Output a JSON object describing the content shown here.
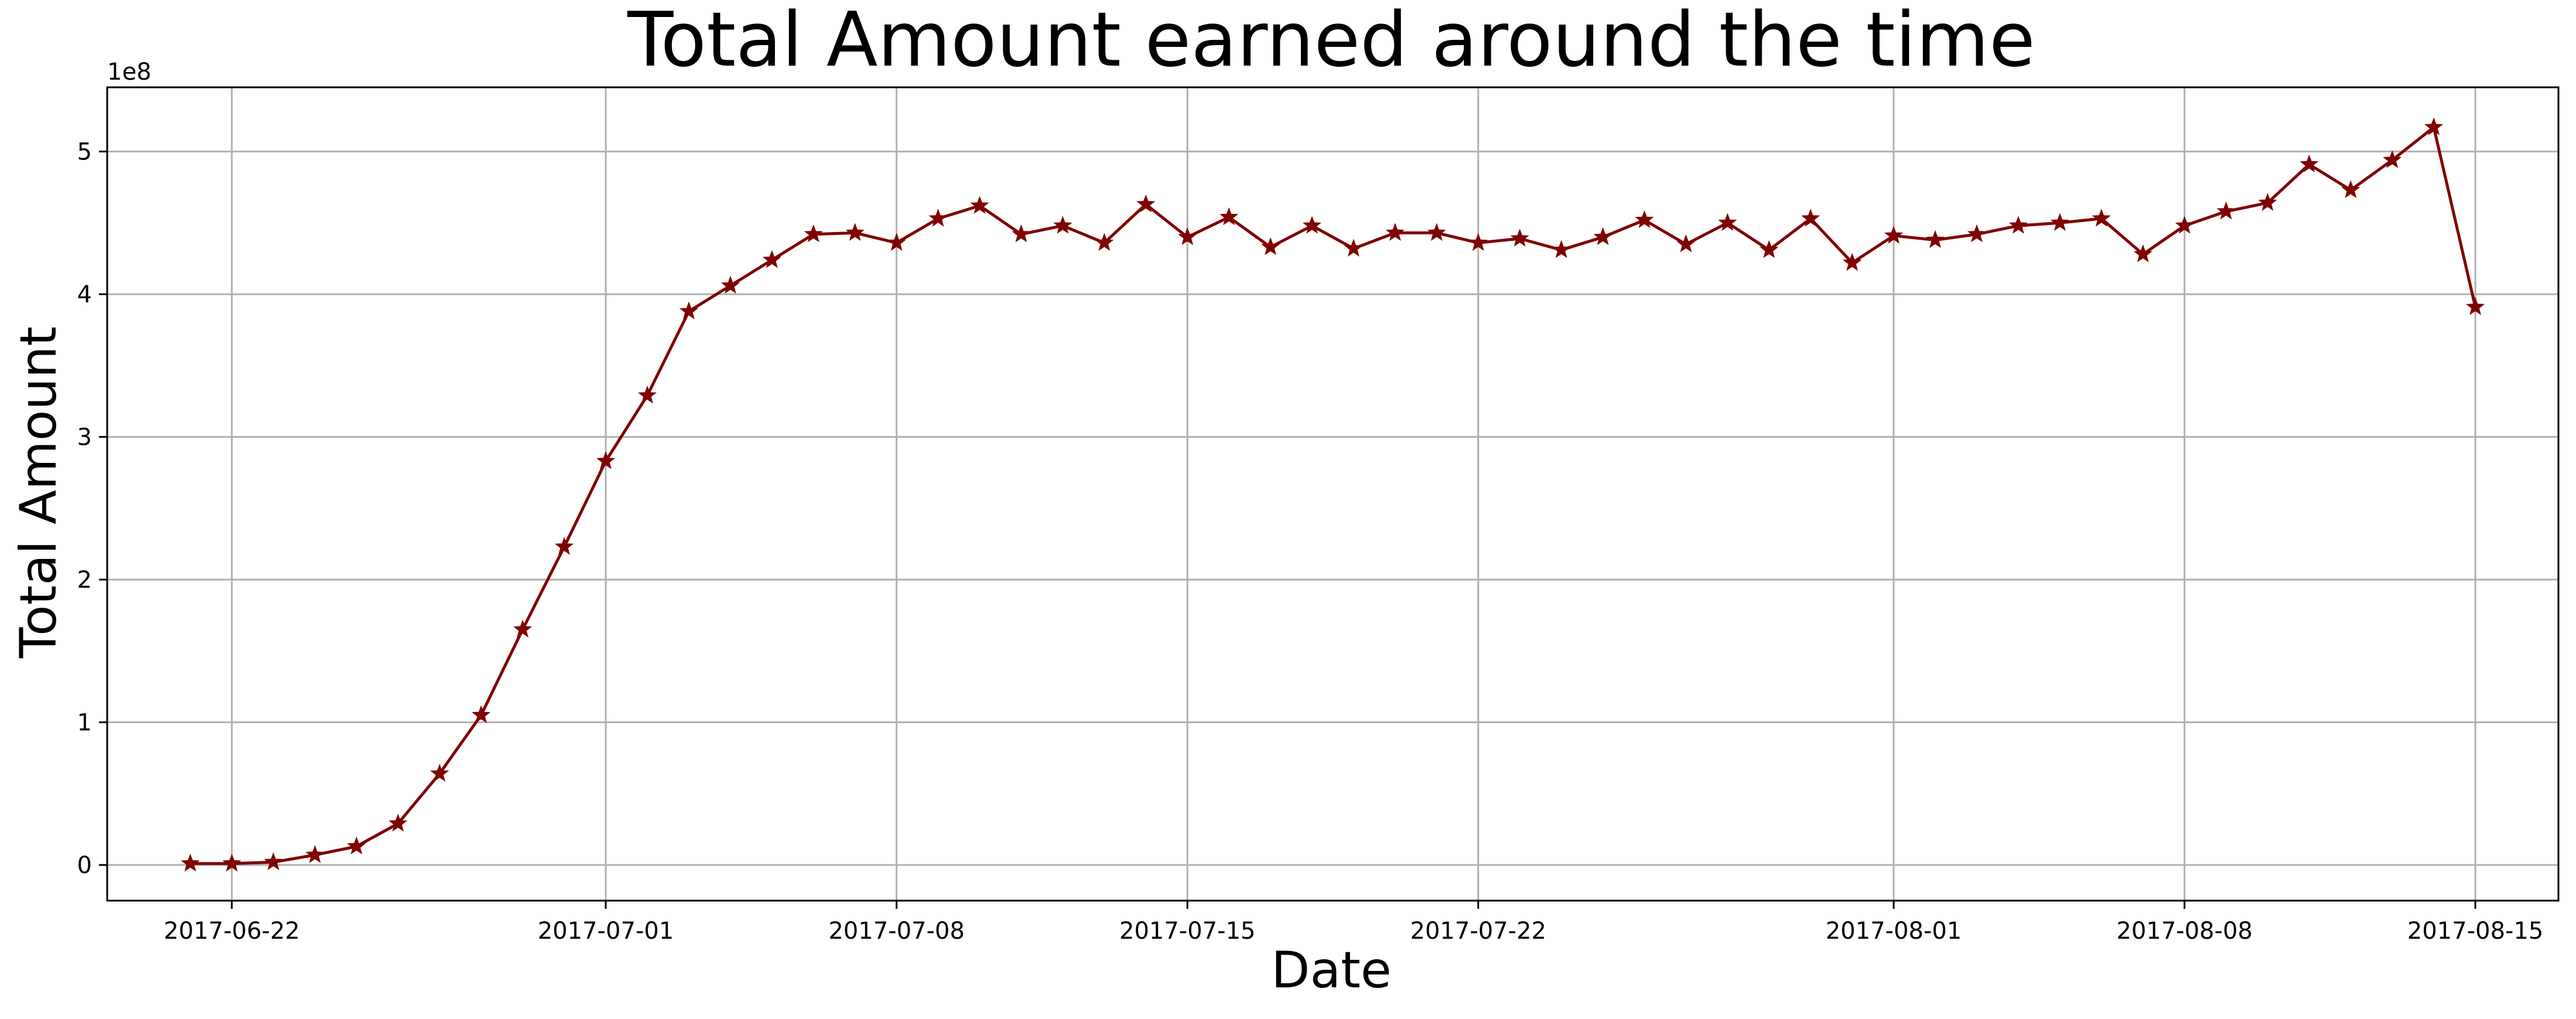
{
  "chart_data": {
    "type": "line",
    "title": "Total Amount earned around the time",
    "xlabel": "Date",
    "ylabel": "Total Amount",
    "y_offset_label": "1e8",
    "y_scale": 100000000,
    "xlim": [
      "2017-06-19",
      "2017-08-17"
    ],
    "ylim": [
      -0.25,
      5.45
    ],
    "x_ticks": [
      "2017-06-22",
      "2017-07-01",
      "2017-07-08",
      "2017-07-15",
      "2017-07-22",
      "2017-08-01",
      "2017-08-08",
      "2017-08-15"
    ],
    "y_ticks": [
      0,
      1,
      2,
      3,
      4,
      5
    ],
    "grid": true,
    "line_color": "#800000",
    "marker": "star",
    "series": [
      {
        "name": "",
        "x": [
          "2017-06-21",
          "2017-06-22",
          "2017-06-23",
          "2017-06-24",
          "2017-06-25",
          "2017-06-26",
          "2017-06-27",
          "2017-06-28",
          "2017-06-29",
          "2017-06-30",
          "2017-07-01",
          "2017-07-02",
          "2017-07-03",
          "2017-07-04",
          "2017-07-05",
          "2017-07-06",
          "2017-07-07",
          "2017-07-08",
          "2017-07-09",
          "2017-07-10",
          "2017-07-11",
          "2017-07-12",
          "2017-07-13",
          "2017-07-14",
          "2017-07-15",
          "2017-07-16",
          "2017-07-17",
          "2017-07-18",
          "2017-07-19",
          "2017-07-20",
          "2017-07-21",
          "2017-07-22",
          "2017-07-23",
          "2017-07-24",
          "2017-07-25",
          "2017-07-26",
          "2017-07-27",
          "2017-07-28",
          "2017-07-29",
          "2017-07-30",
          "2017-07-31",
          "2017-08-01",
          "2017-08-02",
          "2017-08-03",
          "2017-08-04",
          "2017-08-05",
          "2017-08-06",
          "2017-08-07",
          "2017-08-08",
          "2017-08-09",
          "2017-08-10",
          "2017-08-11",
          "2017-08-12",
          "2017-08-13",
          "2017-08-14",
          "2017-08-15"
        ],
        "values": [
          0.01,
          0.01,
          0.02,
          0.07,
          0.13,
          0.29,
          0.64,
          1.05,
          1.65,
          2.23,
          2.83,
          3.29,
          3.88,
          4.06,
          4.24,
          4.42,
          4.43,
          4.36,
          4.53,
          4.62,
          4.42,
          4.48,
          4.36,
          4.63,
          4.4,
          4.54,
          4.33,
          4.48,
          4.32,
          4.43,
          4.43,
          4.36,
          4.39,
          4.31,
          4.4,
          4.52,
          4.35,
          4.5,
          4.31,
          4.53,
          4.22,
          4.41,
          4.38,
          4.42,
          4.48,
          4.5,
          4.53,
          4.28,
          4.48,
          4.58,
          4.64,
          4.91,
          4.73,
          4.94,
          5.17,
          3.91
        ]
      }
    ]
  }
}
